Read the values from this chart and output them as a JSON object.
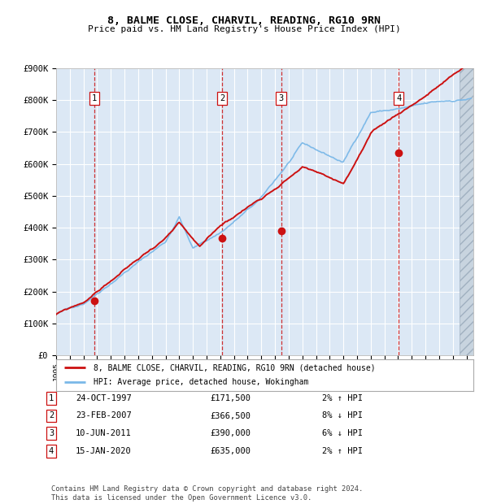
{
  "title": "8, BALME CLOSE, CHARVIL, READING, RG10 9RN",
  "subtitle": "Price paid vs. HM Land Registry's House Price Index (HPI)",
  "ylim": [
    0,
    900000
  ],
  "xlim_start": 1995.0,
  "xlim_end": 2025.5,
  "yticks": [
    0,
    100000,
    200000,
    300000,
    400000,
    500000,
    600000,
    700000,
    800000,
    900000
  ],
  "ytick_labels": [
    "£0",
    "£100K",
    "£200K",
    "£300K",
    "£400K",
    "£500K",
    "£600K",
    "£700K",
    "£800K",
    "£900K"
  ],
  "sale_dates": [
    1997.81,
    2007.14,
    2011.44,
    2020.04
  ],
  "sale_prices": [
    171500,
    366500,
    390000,
    635000
  ],
  "sale_labels": [
    "1",
    "2",
    "3",
    "4"
  ],
  "sale_hpi_pct": [
    "2% ↑ HPI",
    "8% ↓ HPI",
    "6% ↓ HPI",
    "2% ↑ HPI"
  ],
  "sale_dates_str": [
    "24-OCT-1997",
    "23-FEB-2007",
    "10-JUN-2011",
    "15-JAN-2020"
  ],
  "sale_prices_str": [
    "£171,500",
    "£366,500",
    "£390,000",
    "£635,000"
  ],
  "hpi_line_color": "#7ab8e8",
  "price_line_color": "#cc1111",
  "sale_dot_color": "#cc1111",
  "vline_color": "#cc1111",
  "background_color": "#dce8f5",
  "grid_color": "#ffffff",
  "legend1_label": "8, BALME CLOSE, CHARVIL, READING, RG10 9RN (detached house)",
  "legend2_label": "HPI: Average price, detached house, Wokingham",
  "footer_text": "Contains HM Land Registry data © Crown copyright and database right 2024.\nThis data is licensed under the Open Government Licence v3.0."
}
